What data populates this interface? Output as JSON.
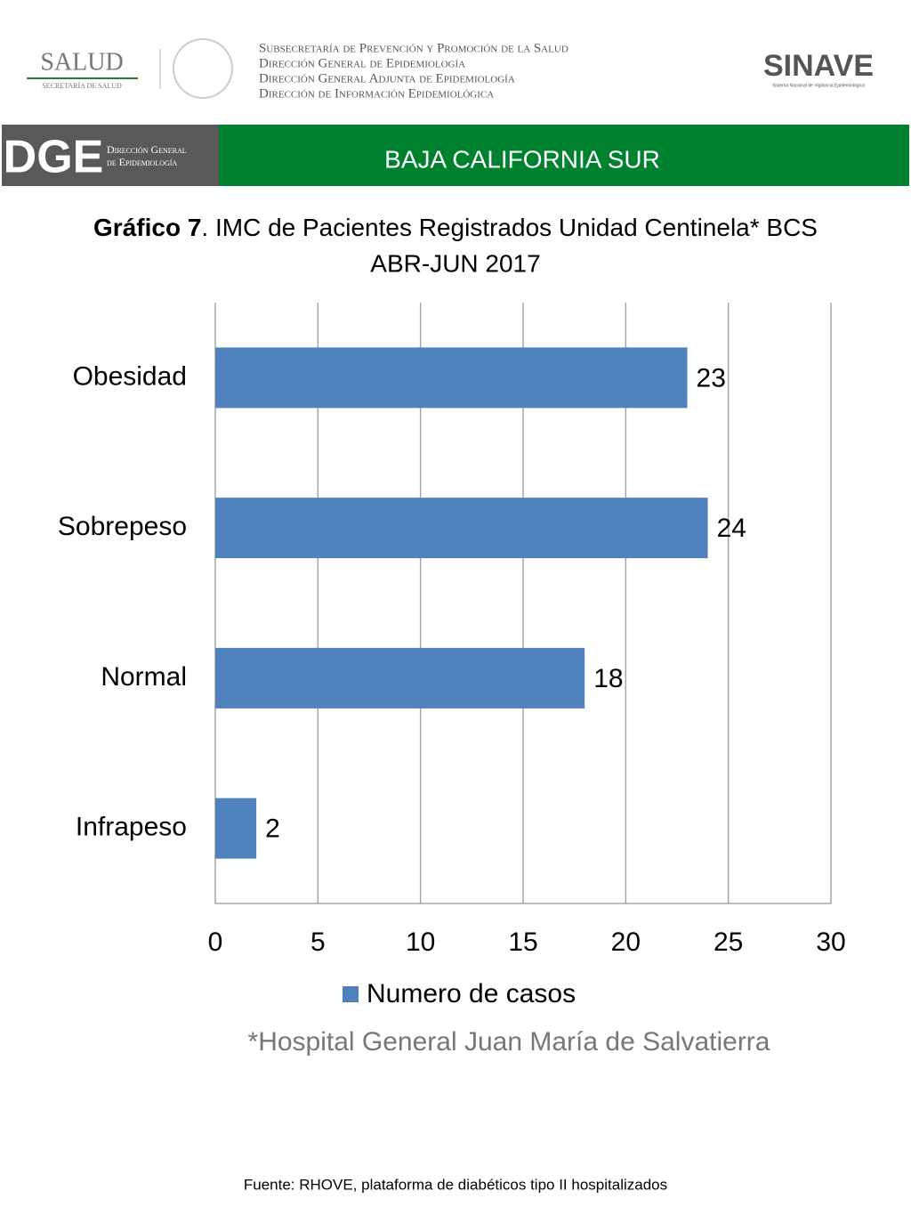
{
  "header": {
    "logo_left": "SALUD",
    "logo_left_sub": "SECRETARÍA DE SALUD",
    "lines": [
      "Subsecretaría de Prevención y Promoción de la Salud",
      "Dirección General de Epidemiología",
      "Dirección General Adjunta de Epidemiología",
      "Dirección de Información Epidemiológica"
    ],
    "logo_right": "SINAVE",
    "logo_right_sub": "Sistema Nacional de Vigilancia Epidemiológica",
    "dge_logo": "DGE",
    "dge_lines": [
      "Dirección General",
      "de Epidemiología"
    ],
    "banner": "BAJA CALIFORNIA SUR"
  },
  "chart_data": {
    "type": "bar",
    "orientation": "horizontal",
    "title_bold": "Gráfico 7",
    "title": ". IMC de Pacientes Registrados Unidad Centinela* BCS",
    "subtitle": "ABR-JUN 2017",
    "categories": [
      "Obesidad",
      "Sobrepeso",
      "Normal",
      "Infrapeso"
    ],
    "series": [
      {
        "name": "Numero de casos",
        "color": "#4f81bd",
        "values": [
          23,
          24,
          18,
          2
        ]
      }
    ],
    "xlim": [
      0,
      30
    ],
    "xticks": [
      0,
      5,
      10,
      15,
      20,
      25,
      30
    ],
    "grid": true,
    "legend": "bottom",
    "note": "*Hospital General Juan María de Salvatierra"
  },
  "footer": {
    "source": "Fuente: RHOVE, plataforma de diabéticos tipo II hospitalizados"
  }
}
